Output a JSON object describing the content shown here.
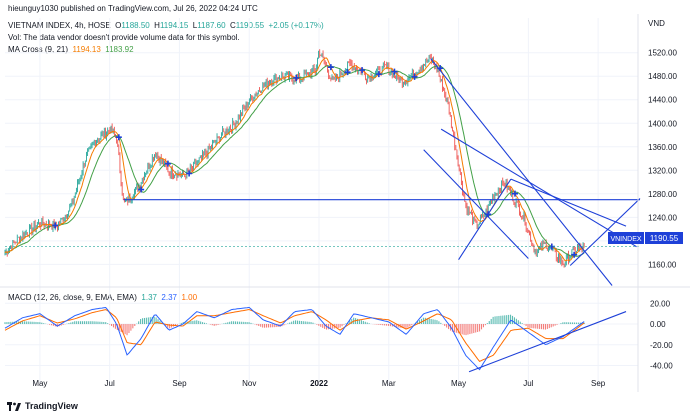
{
  "header": {
    "published_by": "hieunguy1030 published on TradingView.com, Jul 26, 2022 04:24 UTC"
  },
  "legend": {
    "symbol_title": "VIETNAM INDEX, 4h, HOSE",
    "o_label": "O",
    "o_value": "1188.50",
    "h_label": "H",
    "h_value": "1194.15",
    "l_label": "L",
    "l_value": "1187.60",
    "c_label": "C",
    "c_value": "1190.55",
    "change": "+2.05 (+0.17%)",
    "vol_note": "Vol: The data vendor doesn't provide volume data for this symbol.",
    "ma_label": "MA Cross (9, 21)",
    "ma_fast": "1194.13",
    "ma_slow": "1183.92",
    "macd_label": "MACD (12, 26, close, 9, EMA, EMA)",
    "macd_hist": "1.37",
    "macd_line": "2.37",
    "macd_signal": "1.00"
  },
  "price_label": {
    "symbol": "VNINDEX",
    "value": "1190.55"
  },
  "branding": {
    "name": "TradingView"
  },
  "colors": {
    "ma_fast": "#f57c00",
    "ma_slow": "#43a047",
    "trend": "#1e40d8",
    "candle_up": "#26a69a",
    "candle_down": "#ef5350",
    "macd": "#2962ff",
    "signal": "#ff6d00"
  },
  "chart_data": [
    {
      "type": "line",
      "title": "VIETNAM INDEX, 4h, HOSE",
      "currency": "VND",
      "ylim": [
        1130,
        1545
      ],
      "y_ticks": [
        "1520.00",
        "1480.00",
        "1440.00",
        "1400.00",
        "1360.00",
        "1320.00",
        "1280.00",
        "1240.00",
        "1200.00",
        "1160.00"
      ],
      "y_tick_values": [
        1520,
        1480,
        1440,
        1400,
        1360,
        1320,
        1280,
        1240,
        1200,
        1160
      ],
      "x_ticks": [
        "May",
        "Jul",
        "Sep",
        "Nov",
        "2022",
        "Mar",
        "May",
        "Jul",
        "Sep"
      ],
      "x_tick_months": [
        0,
        2,
        4,
        6,
        8,
        10,
        12,
        14,
        16
      ],
      "x_range_months": [
        -1.0,
        17.2
      ],
      "series": [
        {
          "name": "VNINDEX close",
          "points": [
            [
              -1.0,
              1180
            ],
            [
              -0.6,
              1205
            ],
            [
              0.0,
              1230
            ],
            [
              0.5,
              1225
            ],
            [
              0.9,
              1258
            ],
            [
              1.3,
              1340
            ],
            [
              1.6,
              1370
            ],
            [
              2.0,
              1390
            ],
            [
              2.2,
              1375
            ],
            [
              2.4,
              1262
            ],
            [
              2.8,
              1290
            ],
            [
              3.3,
              1350
            ],
            [
              3.7,
              1318
            ],
            [
              4.2,
              1312
            ],
            [
              4.7,
              1345
            ],
            [
              5.2,
              1380
            ],
            [
              5.6,
              1400
            ],
            [
              6.0,
              1438
            ],
            [
              6.4,
              1465
            ],
            [
              6.9,
              1480
            ],
            [
              7.4,
              1475
            ],
            [
              7.9,
              1490
            ],
            [
              8.0,
              1525
            ],
            [
              8.4,
              1470
            ],
            [
              8.9,
              1502
            ],
            [
              9.4,
              1478
            ],
            [
              9.9,
              1495
            ],
            [
              10.4,
              1470
            ],
            [
              10.9,
              1495
            ],
            [
              11.2,
              1510
            ],
            [
              11.4,
              1490
            ],
            [
              11.7,
              1430
            ],
            [
              12.0,
              1330
            ],
            [
              12.2,
              1260
            ],
            [
              12.5,
              1225
            ],
            [
              12.7,
              1240
            ],
            [
              13.0,
              1275
            ],
            [
              13.3,
              1300
            ],
            [
              13.6,
              1270
            ],
            [
              13.9,
              1235
            ],
            [
              14.2,
              1180
            ],
            [
              14.5,
              1195
            ],
            [
              14.8,
              1175
            ],
            [
              15.0,
              1162
            ],
            [
              15.3,
              1183
            ],
            [
              15.6,
              1190.55
            ]
          ]
        }
      ],
      "indicators": {
        "ma_fast_period": 9,
        "ma_slow_period": 21,
        "ma_fast_last": 1194.13,
        "ma_slow_last": 1183.92
      },
      "horizontal_line": 1270,
      "trend_lines": [
        {
          "from": [
            11.2,
            1510
          ],
          "to": [
            16.4,
            1124
          ]
        },
        {
          "from": [
            11.5,
            1390
          ],
          "to": [
            17.1,
            1190
          ]
        },
        {
          "from": [
            12.0,
            1168
          ],
          "to": [
            13.5,
            1305
          ]
        },
        {
          "from": [
            11.0,
            1355
          ],
          "to": [
            14.0,
            1170
          ]
        },
        {
          "from": [
            13.5,
            1305
          ],
          "to": [
            16.8,
            1225
          ]
        },
        {
          "from": [
            15.2,
            1158
          ],
          "to": [
            17.2,
            1272
          ]
        }
      ],
      "last_price": 1190.55
    },
    {
      "type": "line",
      "title": "MACD (12, 26, close, 9, EMA, EMA)",
      "ylim": [
        -52,
        27
      ],
      "y_ticks": [
        "20.00",
        "0.00",
        "-20.00",
        "-40.00"
      ],
      "y_tick_values": [
        20,
        0,
        -20,
        -40
      ],
      "series": [
        {
          "name": "MACD",
          "points": [
            [
              -1.0,
              -4
            ],
            [
              -0.5,
              6
            ],
            [
              0.0,
              10
            ],
            [
              0.5,
              -2
            ],
            [
              1.0,
              8
            ],
            [
              1.5,
              14
            ],
            [
              1.9,
              16
            ],
            [
              2.2,
              0
            ],
            [
              2.5,
              -30
            ],
            [
              2.9,
              -14
            ],
            [
              3.3,
              10
            ],
            [
              3.7,
              -6
            ],
            [
              4.1,
              0
            ],
            [
              4.5,
              12
            ],
            [
              5.0,
              6
            ],
            [
              5.5,
              14
            ],
            [
              6.0,
              16
            ],
            [
              6.4,
              4
            ],
            [
              6.9,
              -2
            ],
            [
              7.3,
              12
            ],
            [
              7.8,
              14
            ],
            [
              8.2,
              -2
            ],
            [
              8.6,
              -10
            ],
            [
              9.0,
              10
            ],
            [
              9.5,
              6
            ],
            [
              10.0,
              2
            ],
            [
              10.5,
              -10
            ],
            [
              11.0,
              10
            ],
            [
              11.4,
              14
            ],
            [
              11.8,
              -4
            ],
            [
              12.2,
              -30
            ],
            [
              12.6,
              -44
            ],
            [
              13.0,
              -22
            ],
            [
              13.5,
              4
            ],
            [
              14.0,
              -8
            ],
            [
              14.5,
              -20
            ],
            [
              15.0,
              -12
            ],
            [
              15.6,
              2.37
            ]
          ]
        },
        {
          "name": "Signal",
          "points": [
            [
              -1.0,
              -6
            ],
            [
              -0.5,
              3
            ],
            [
              0.0,
              8
            ],
            [
              0.5,
              1
            ],
            [
              1.0,
              5
            ],
            [
              1.5,
              11
            ],
            [
              1.9,
              14
            ],
            [
              2.2,
              6
            ],
            [
              2.5,
              -18
            ],
            [
              2.9,
              -20
            ],
            [
              3.3,
              2
            ],
            [
              3.7,
              -1
            ],
            [
              4.1,
              -2
            ],
            [
              4.5,
              8
            ],
            [
              5.0,
              8
            ],
            [
              5.5,
              11
            ],
            [
              6.0,
              14
            ],
            [
              6.4,
              8
            ],
            [
              6.9,
              1
            ],
            [
              7.3,
              8
            ],
            [
              7.8,
              12
            ],
            [
              8.2,
              4
            ],
            [
              8.6,
              -6
            ],
            [
              9.0,
              3
            ],
            [
              9.5,
              6
            ],
            [
              10.0,
              4
            ],
            [
              10.5,
              -5
            ],
            [
              11.0,
              3
            ],
            [
              11.4,
              10
            ],
            [
              11.8,
              4
            ],
            [
              12.2,
              -18
            ],
            [
              12.6,
              -36
            ],
            [
              13.0,
              -30
            ],
            [
              13.5,
              -6
            ],
            [
              14.0,
              -4
            ],
            [
              14.5,
              -14
            ],
            [
              15.0,
              -14
            ],
            [
              15.6,
              1.0
            ]
          ]
        }
      ],
      "histogram_last": 1.37,
      "trend_line": {
        "from": [
          12.3,
          -46
        ],
        "to": [
          16.8,
          12
        ]
      }
    }
  ]
}
